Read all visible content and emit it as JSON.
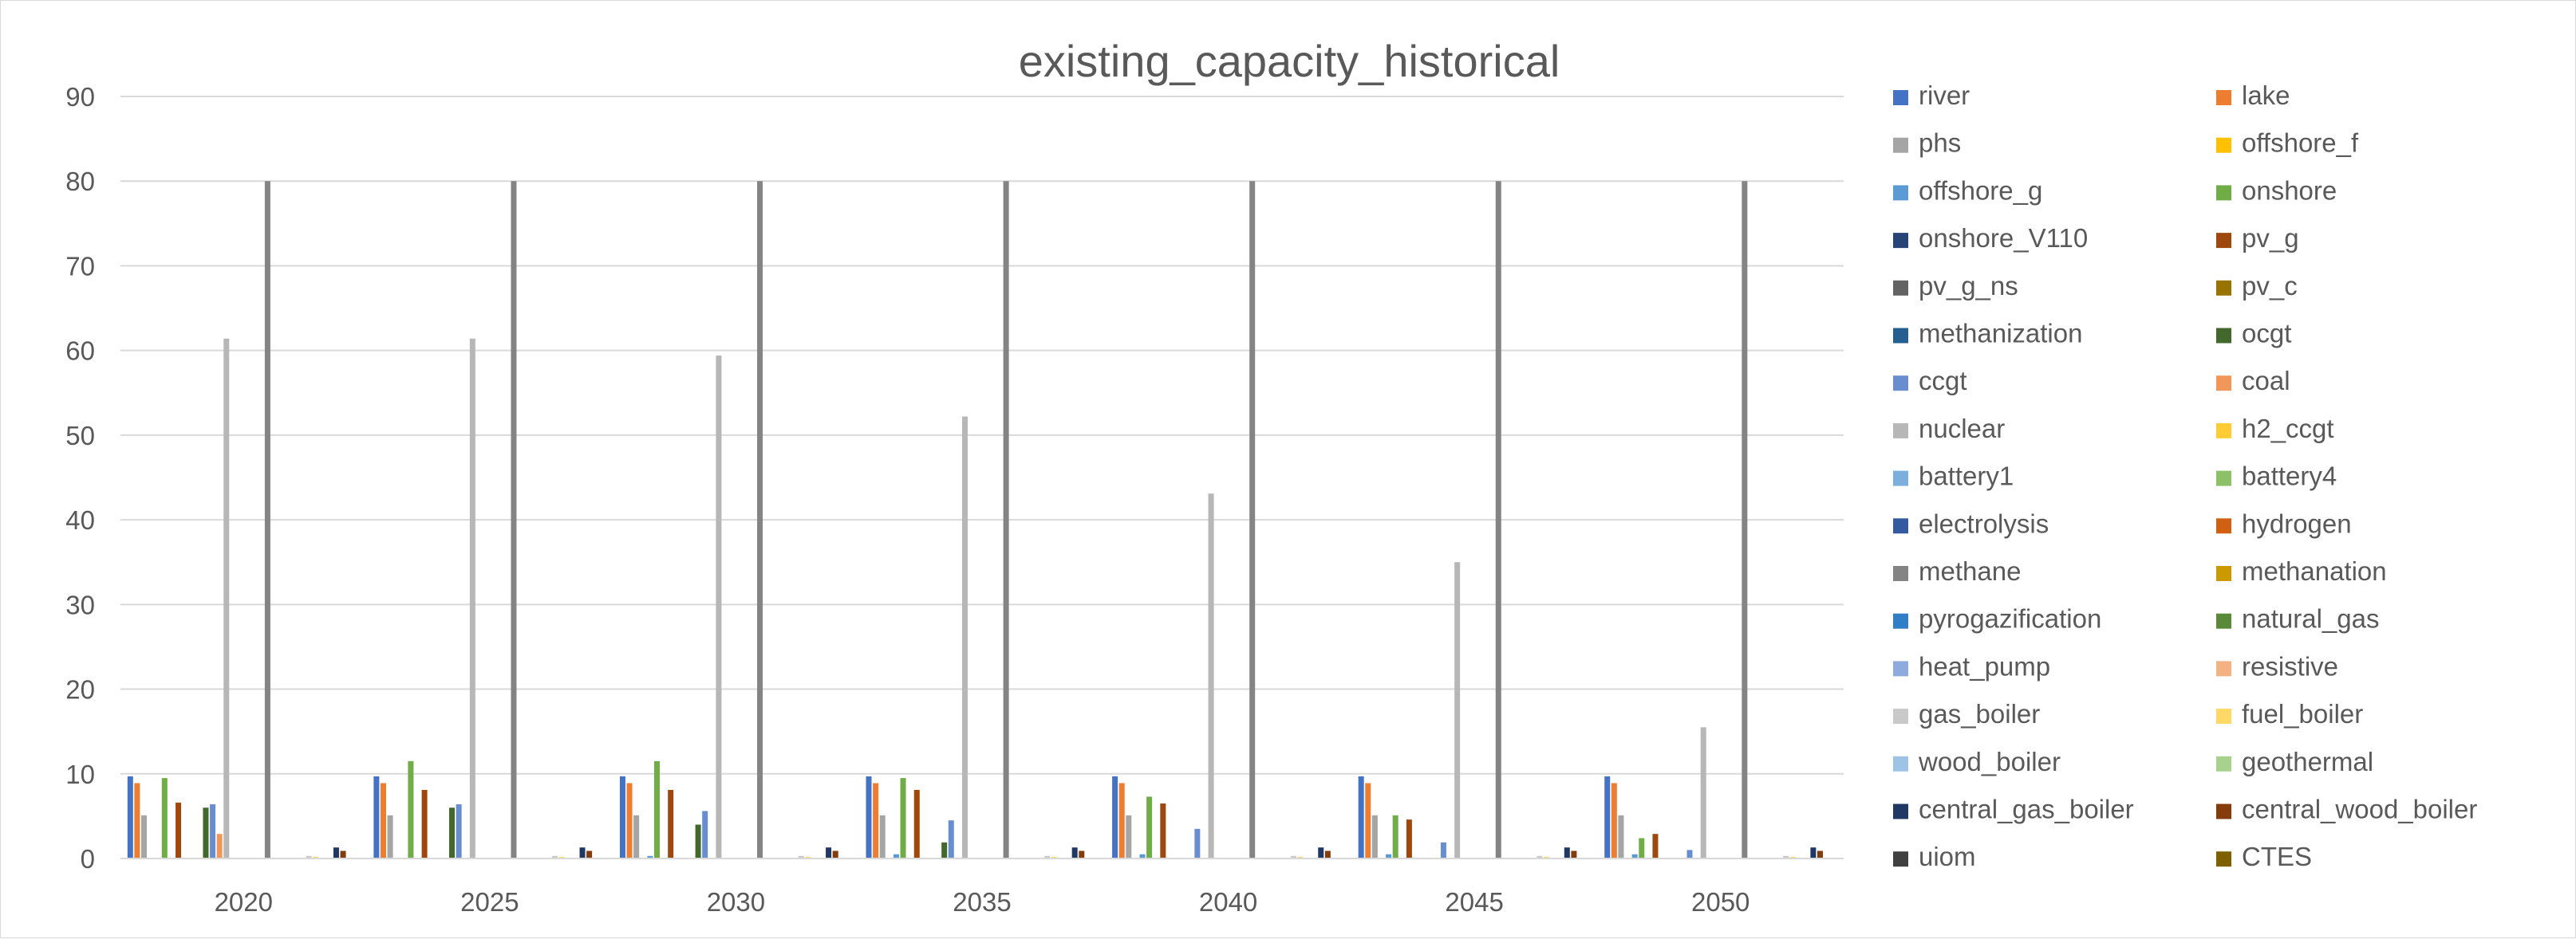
{
  "chart_data": {
    "type": "bar",
    "title": "existing_capacity_historical",
    "xlabel": "",
    "ylabel": "",
    "ylim": [
      0,
      90
    ],
    "yticks": [
      0,
      10,
      20,
      30,
      40,
      50,
      60,
      70,
      80,
      90
    ],
    "grid": true,
    "legend_position": "right",
    "categories": [
      "2020",
      "2025",
      "2030",
      "2035",
      "2040",
      "2045",
      "2050"
    ],
    "series": [
      {
        "name": "river",
        "color": "#4472C4",
        "values": [
          9.7,
          9.7,
          9.7,
          9.7,
          9.7,
          9.7,
          9.7
        ]
      },
      {
        "name": "lake",
        "color": "#ED7D31",
        "values": [
          8.9,
          8.9,
          8.9,
          8.9,
          8.9,
          8.9,
          8.9
        ]
      },
      {
        "name": "phs",
        "color": "#A5A5A5",
        "values": [
          5.1,
          5.1,
          5.1,
          5.1,
          5.1,
          5.1,
          5.1
        ]
      },
      {
        "name": "offshore_f",
        "color": "#FFC000",
        "values": [
          0,
          0,
          0,
          0,
          0,
          0,
          0
        ]
      },
      {
        "name": "offshore_g",
        "color": "#5B9BD5",
        "values": [
          0,
          0,
          0.3,
          0.5,
          0.5,
          0.5,
          0.5
        ]
      },
      {
        "name": "onshore",
        "color": "#70AD47",
        "values": [
          9.5,
          11.5,
          11.5,
          9.5,
          7.3,
          5.1,
          2.4
        ]
      },
      {
        "name": "onshore_V110",
        "color": "#264478",
        "values": [
          0,
          0,
          0,
          0,
          0,
          0,
          0
        ]
      },
      {
        "name": "pv_g",
        "color": "#9E480E",
        "values": [
          6.6,
          8.1,
          8.1,
          8.1,
          6.5,
          4.6,
          2.9
        ]
      },
      {
        "name": "pv_g_ns",
        "color": "#636363",
        "values": [
          0,
          0,
          0,
          0,
          0,
          0,
          0
        ]
      },
      {
        "name": "pv_c",
        "color": "#997300",
        "values": [
          0,
          0,
          0,
          0,
          0,
          0,
          0
        ]
      },
      {
        "name": "methanization",
        "color": "#255E91",
        "values": [
          0,
          0,
          0,
          0,
          0,
          0,
          0
        ]
      },
      {
        "name": "ocgt",
        "color": "#43682B",
        "values": [
          6.0,
          6.0,
          4.0,
          1.9,
          0,
          0,
          0
        ]
      },
      {
        "name": "ccgt",
        "color": "#698ED0",
        "values": [
          6.4,
          6.4,
          5.6,
          4.5,
          3.5,
          1.9,
          1.0
        ]
      },
      {
        "name": "coal",
        "color": "#F1975A",
        "values": [
          2.9,
          0,
          0,
          0,
          0,
          0,
          0
        ]
      },
      {
        "name": "nuclear",
        "color": "#B7B7B7",
        "values": [
          61.4,
          61.4,
          59.4,
          52.2,
          43.1,
          35.0,
          15.5
        ]
      },
      {
        "name": "h2_ccgt",
        "color": "#FFCD33",
        "values": [
          0,
          0,
          0,
          0,
          0,
          0,
          0
        ]
      },
      {
        "name": "battery1",
        "color": "#7CAFDD",
        "values": [
          0,
          0,
          0,
          0,
          0,
          0,
          0
        ]
      },
      {
        "name": "battery4",
        "color": "#8CC168",
        "values": [
          0,
          0,
          0,
          0,
          0,
          0,
          0
        ]
      },
      {
        "name": "electrolysis",
        "color": "#335AA1",
        "values": [
          0,
          0,
          0,
          0,
          0,
          0,
          0
        ]
      },
      {
        "name": "hydrogen",
        "color": "#D26012",
        "values": [
          0,
          0,
          0,
          0,
          0,
          0,
          0
        ]
      },
      {
        "name": "methane",
        "color": "#848484",
        "values": [
          80,
          80,
          80,
          80,
          80,
          80,
          80
        ]
      },
      {
        "name": "methanation",
        "color": "#CC9A00",
        "values": [
          0,
          0,
          0,
          0,
          0,
          0,
          0
        ]
      },
      {
        "name": "pyrogazification",
        "color": "#2F7EC7",
        "values": [
          0,
          0,
          0,
          0,
          0,
          0,
          0
        ]
      },
      {
        "name": "natural_gas",
        "color": "#5A8A39",
        "values": [
          0,
          0,
          0,
          0,
          0,
          0,
          0
        ]
      },
      {
        "name": "heat_pump",
        "color": "#8FAADC",
        "values": [
          0,
          0,
          0,
          0,
          0,
          0,
          0
        ]
      },
      {
        "name": "resistive",
        "color": "#F4B183",
        "values": [
          0,
          0,
          0,
          0,
          0,
          0,
          0
        ]
      },
      {
        "name": "gas_boiler",
        "color": "#C9C9C9",
        "values": [
          0.3,
          0.3,
          0.3,
          0.3,
          0.3,
          0.3,
          0.3
        ]
      },
      {
        "name": "fuel_boiler",
        "color": "#FFD966",
        "values": [
          0.2,
          0.2,
          0.2,
          0.2,
          0.2,
          0.2,
          0.2
        ]
      },
      {
        "name": "wood_boiler",
        "color": "#9DC3E6",
        "values": [
          0,
          0,
          0,
          0,
          0,
          0,
          0
        ]
      },
      {
        "name": "geothermal",
        "color": "#A9D18E",
        "values": [
          0,
          0,
          0,
          0,
          0,
          0,
          0
        ]
      },
      {
        "name": "central_gas_boiler",
        "color": "#203864",
        "values": [
          1.3,
          1.3,
          1.3,
          1.3,
          1.3,
          1.3,
          1.3
        ]
      },
      {
        "name": "central_wood_boiler",
        "color": "#843C0C",
        "values": [
          0.9,
          0.9,
          0.9,
          0.9,
          0.9,
          0.9,
          0.9
        ]
      },
      {
        "name": "uiom",
        "color": "#404040",
        "values": [
          0,
          0,
          0,
          0,
          0,
          0,
          0
        ]
      },
      {
        "name": "CTES",
        "color": "#7F6000",
        "values": [
          0,
          0,
          0,
          0,
          0,
          0,
          0
        ]
      }
    ]
  }
}
